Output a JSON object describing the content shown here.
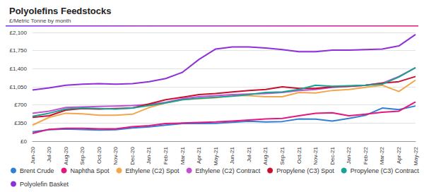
{
  "chart_data": {
    "type": "line",
    "title": "Polyolefins Feedstocks",
    "subtitle": "£/Metric Tonne by month",
    "categories": [
      "Jun-20",
      "Jul-20",
      "Aug-20",
      "Sep-20",
      "Oct-20",
      "Nov-20",
      "Dec-20",
      "Jan-21",
      "Feb-21",
      "Mar-21",
      "Apr-21",
      "May-21",
      "Jun-21",
      "Jul-21",
      "Aug-21",
      "Sep-21",
      "Oct-21",
      "Nov-21",
      "Dec-21",
      "Jan-22",
      "Feb-22",
      "Mar-22",
      "Apr-22",
      "May-22"
    ],
    "series": [
      {
        "name": "Brent Crude",
        "color": "#2f7fd6",
        "values": [
          180,
          220,
          235,
          225,
          215,
          220,
          255,
          275,
          310,
          340,
          340,
          345,
          365,
          385,
          370,
          380,
          430,
          425,
          390,
          440,
          500,
          640,
          610,
          680
        ]
      },
      {
        "name": "Naphtha Spot",
        "color": "#e5177e",
        "values": [
          150,
          230,
          250,
          250,
          240,
          240,
          280,
          300,
          340,
          350,
          360,
          370,
          390,
          410,
          430,
          440,
          490,
          540,
          550,
          490,
          520,
          560,
          580,
          760
        ]
      },
      {
        "name": "Ethylene (C2) Spot",
        "color": "#f4a64c",
        "values": [
          310,
          460,
          540,
          530,
          500,
          500,
          520,
          650,
          740,
          800,
          820,
          840,
          880,
          880,
          860,
          860,
          940,
          930,
          980,
          1000,
          1040,
          1080,
          960,
          1180
        ]
      },
      {
        "name": "Ethylene (C2) Contract",
        "color": "#c252cf",
        "values": [
          540,
          580,
          650,
          660,
          670,
          680,
          690,
          710,
          750,
          820,
          860,
          880,
          900,
          910,
          920,
          940,
          980,
          1000,
          1040,
          1060,
          1080,
          1120,
          1250,
          1420
        ]
      },
      {
        "name": "Propylene (C3) Spot",
        "color": "#c8102e",
        "values": [
          460,
          490,
          600,
          630,
          620,
          630,
          640,
          720,
          800,
          850,
          900,
          920,
          950,
          980,
          1000,
          1050,
          1020,
          1020,
          1050,
          1060,
          1080,
          1120,
          1150,
          1250
        ]
      },
      {
        "name": "Propylene (C3) Contract",
        "color": "#16a394",
        "values": [
          480,
          540,
          620,
          640,
          630,
          620,
          640,
          690,
          740,
          800,
          830,
          850,
          870,
          900,
          940,
          950,
          1000,
          1080,
          1060,
          1070,
          1080,
          1100,
          1240,
          1420
        ]
      },
      {
        "name": "Polyolefin Basket",
        "color": "#8e2fd8",
        "values": [
          990,
          1030,
          1080,
          1100,
          1110,
          1100,
          1110,
          1150,
          1210,
          1330,
          1580,
          1780,
          1820,
          1820,
          1800,
          1770,
          1730,
          1730,
          1760,
          1760,
          1770,
          1780,
          1840,
          2060
        ]
      }
    ],
    "ylim": [
      0,
      2100
    ],
    "yticks": [
      {
        "value": 0,
        "label": "£0"
      },
      {
        "value": 350,
        "label": "£350"
      },
      {
        "value": 700,
        "label": "£700"
      },
      {
        "value": 1050,
        "label": "£1,050"
      },
      {
        "value": 1400,
        "label": "£1,400"
      },
      {
        "value": 1750,
        "label": "£1,750"
      },
      {
        "value": 2100,
        "label": "£2,100"
      }
    ],
    "grid": true,
    "legend": "bottom"
  }
}
